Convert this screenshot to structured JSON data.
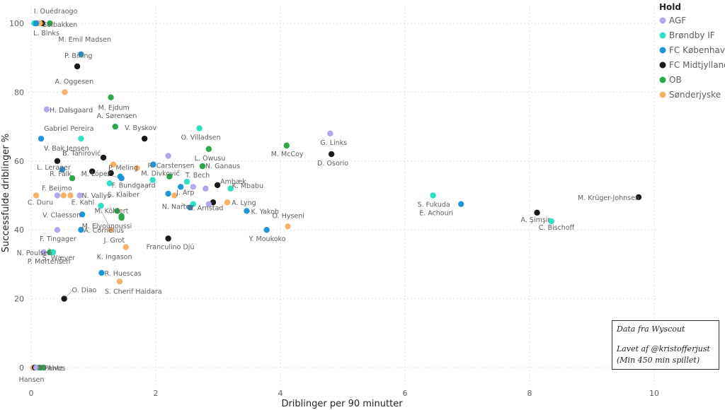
{
  "chart_data": {
    "type": "scatter",
    "title": "",
    "xlabel": "Driblinger per 90 minutter",
    "ylabel": "Successfulde driblinger %",
    "xlim": [
      0,
      10.3
    ],
    "ylim": [
      -4,
      106
    ],
    "xticks": [
      0,
      2,
      4,
      6,
      8,
      10
    ],
    "yticks": [
      0,
      20,
      40,
      60,
      80,
      100
    ],
    "grid": true,
    "legend": {
      "title": "Hold",
      "placement": "right",
      "entries": [
        {
          "team": "AGF",
          "color": "#b4a7f2"
        },
        {
          "team": "Brøndby IF",
          "color": "#2ee0c4"
        },
        {
          "team": "FC København",
          "color": "#1e96d8"
        },
        {
          "team": "FC Midtjylland",
          "color": "#1a1a1a"
        },
        {
          "team": "OB",
          "color": "#2aa84a"
        },
        {
          "team": "Sønderjyske",
          "color": "#f7b26a"
        }
      ]
    },
    "points": [
      {
        "name": "I. Ouédraogo",
        "team": "AGF",
        "x": 0.1,
        "y": 100.0
      },
      {
        "name": "Solbakken",
        "team": "OB",
        "x": 0.3,
        "y": 100.0
      },
      {
        "name": "",
        "team": "FC Midtjylland",
        "x": 0.18,
        "y": 100.0
      },
      {
        "name": "",
        "team": "Brøndby IF",
        "x": 0.05,
        "y": 100.0
      },
      {
        "name": "",
        "team": "Sønderjyske",
        "x": 0.14,
        "y": 100.0
      },
      {
        "name": "L. Binks",
        "team": "FC København",
        "x": 0.08,
        "y": 100.0
      },
      {
        "name": "M. Emil Madsen",
        "team": "FC København",
        "x": 0.8,
        "y": 91.0
      },
      {
        "name": "P. Billing",
        "team": "FC Midjtylland",
        "x": 0.74,
        "y": 87.5
      },
      {
        "name": "A. Oggesen",
        "team": "Sønderjyske",
        "x": 0.54,
        "y": 80.0
      },
      {
        "name": "M. Ejdum",
        "team": "OB",
        "x": 1.28,
        "y": 78.5
      },
      {
        "name": "H. Dalsgaard",
        "team": "AGF",
        "x": 0.25,
        "y": 75.0
      },
      {
        "name": "A. Sørensen",
        "team": "OB",
        "x": 1.35,
        "y": 70.0
      },
      {
        "name": "O. Villadsen",
        "team": "Brøndby IF",
        "x": 2.7,
        "y": 69.5
      },
      {
        "name": "G. Links",
        "team": "AGF",
        "x": 4.8,
        "y": 68.0
      },
      {
        "name": "Gabriel Pereira",
        "team": "FC København",
        "x": 0.16,
        "y": 66.5
      },
      {
        "name": "",
        "team": "Brøndby IF",
        "x": 0.8,
        "y": 66.5
      },
      {
        "name": "V. Byskov",
        "team": "FC Midtjylland",
        "x": 1.82,
        "y": 66.5
      },
      {
        "name": "M. McCoy",
        "team": "OB",
        "x": 4.1,
        "y": 64.5
      },
      {
        "name": "L. Owusu",
        "team": "OB",
        "x": 2.85,
        "y": 63.5
      },
      {
        "name": "B. Tahirović",
        "team": "FC Midtjylland",
        "x": 1.16,
        "y": 61.0
      },
      {
        "name": "V. Bak Jensen",
        "team": "FC Midtjylland",
        "x": 0.42,
        "y": 60.0
      },
      {
        "name": "",
        "team": "AGF",
        "x": 2.2,
        "y": 61.5
      },
      {
        "name": "D. Osorio",
        "team": "FC Midtjylland",
        "x": 4.82,
        "y": 62.0
      },
      {
        "name": "R. Carstensen",
        "team": "FC København",
        "x": 1.96,
        "y": 59.0
      },
      {
        "name": "N. Ganaus",
        "team": "OB",
        "x": 2.75,
        "y": 58.5
      },
      {
        "name": "L. Lerager",
        "team": "FC København",
        "x": 0.5,
        "y": 57.5
      },
      {
        "name": "P. Meling",
        "team": "Sønderjyske",
        "x": 1.32,
        "y": 59.0
      },
      {
        "name": "",
        "team": "FC Midtjylland",
        "x": 0.98,
        "y": 57.0
      },
      {
        "name": "",
        "team": "FC Midtjylland",
        "x": 1.28,
        "y": 56.5
      },
      {
        "name": "",
        "team": "Sønderjyske",
        "x": 1.7,
        "y": 58.0
      },
      {
        "name": "R. Falk",
        "team": "OB",
        "x": 0.66,
        "y": 55.0
      },
      {
        "name": "M. Divković",
        "team": "OB",
        "x": 2.22,
        "y": 55.5
      },
      {
        "name": "M. López",
        "team": "FC København",
        "x": 1.45,
        "y": 55.0
      },
      {
        "name": "",
        "team": "FC København",
        "x": 1.43,
        "y": 55.5
      },
      {
        "name": "T. Bech",
        "team": "Brøndby IF",
        "x": 2.5,
        "y": 54.0
      },
      {
        "name": "Ambæk",
        "team": "FC Midtjylland",
        "x": 2.99,
        "y": 53.0
      },
      {
        "name": "F. Bundgaard",
        "team": "Brøndby IF",
        "x": 1.95,
        "y": 54.5
      },
      {
        "name": "J. Arp",
        "team": "FC København",
        "x": 2.4,
        "y": 52.5
      },
      {
        "name": "",
        "team": "AGF",
        "x": 2.6,
        "y": 52.5
      },
      {
        "name": "",
        "team": "AGF",
        "x": 2.8,
        "y": 52.0
      },
      {
        "name": "K. Mbabu",
        "team": "Brøndby IF",
        "x": 3.2,
        "y": 52.0
      },
      {
        "name": "F. Beijmo",
        "team": "AGF",
        "x": 0.42,
        "y": 50.0
      },
      {
        "name": "S. Klaiber",
        "team": "Brøndby IF",
        "x": 1.26,
        "y": 53.5
      },
      {
        "name": "",
        "team": "FC København",
        "x": 2.2,
        "y": 50.5
      },
      {
        "name": "",
        "team": "Sønderjyske",
        "x": 2.3,
        "y": 50.0
      },
      {
        "name": "C. Duru",
        "team": "Sønderjyske",
        "x": 0.08,
        "y": 50.0
      },
      {
        "name": "",
        "team": "Sønderjyske",
        "x": 0.52,
        "y": 50.0
      },
      {
        "name": "",
        "team": "Sønderjyske",
        "x": 0.63,
        "y": 50.0
      },
      {
        "name": "E. Kahl",
        "team": "AGF",
        "x": 0.78,
        "y": 50.0
      },
      {
        "name": "S. Fukuda",
        "team": "Brøndby IF",
        "x": 6.45,
        "y": 50.0
      },
      {
        "name": "M. Krüger-Johnsen",
        "team": "FC Midtjylland",
        "x": 9.75,
        "y": 49.5
      },
      {
        "name": "A. Lyng",
        "team": "Sønderjyske",
        "x": 3.15,
        "y": 48.0
      },
      {
        "name": "N. Vallys",
        "team": "Brøndby IF",
        "x": 1.12,
        "y": 47.0
      },
      {
        "name": "N. Nartey",
        "team": "Brøndby IF",
        "x": 2.6,
        "y": 47.5
      },
      {
        "name": "",
        "team": "FC Midtjylland",
        "x": 2.92,
        "y": 48.0
      },
      {
        "name": "",
        "team": "AGF",
        "x": 2.85,
        "y": 47.5
      },
      {
        "name": "K. Arnstad",
        "team": "FC København",
        "x": 2.55,
        "y": 46.5
      },
      {
        "name": "E. Achouri",
        "team": "FC København",
        "x": 6.9,
        "y": 47.5
      },
      {
        "name": "V. Claesson",
        "team": "FC København",
        "x": 0.82,
        "y": 44.5
      },
      {
        "name": "M. Köhlert",
        "team": "OB",
        "x": 1.38,
        "y": 45.5
      },
      {
        "name": "",
        "team": "OB",
        "x": 1.45,
        "y": 44.0
      },
      {
        "name": "K. Yakob",
        "team": "FC København",
        "x": 3.46,
        "y": 45.5
      },
      {
        "name": "A. Şimşir",
        "team": "FC Midtjylland",
        "x": 8.12,
        "y": 45.0
      },
      {
        "name": "C. Bischoff",
        "team": "Brøndby IF",
        "x": 8.35,
        "y": 42.5
      },
      {
        "name": "M. Elyounoussi",
        "team": "OB",
        "x": 1.45,
        "y": 43.5
      },
      {
        "name": "J. Grot",
        "team": "Sønderjyske",
        "x": 1.28,
        "y": 40.0
      },
      {
        "name": "F. Tingager",
        "team": "AGF",
        "x": 0.42,
        "y": 40.0
      },
      {
        "name": "A. Cornelius",
        "team": "FC København",
        "x": 0.8,
        "y": 40.0
      },
      {
        "name": "Y. Moukoko",
        "team": "FC København",
        "x": 3.78,
        "y": 40.0
      },
      {
        "name": "O. Hyseni",
        "team": "Sønderjyske",
        "x": 4.12,
        "y": 41.0
      },
      {
        "name": "Franculino Djú",
        "team": "FC Midtjylland",
        "x": 2.2,
        "y": 37.5
      },
      {
        "name": "S. Wæver",
        "team": "OB",
        "x": 0.35,
        "y": 33.5
      },
      {
        "name": "N. Poulsen",
        "team": "AGF",
        "x": 0.2,
        "y": 33.5
      },
      {
        "name": "",
        "team": "OB",
        "x": 0.3,
        "y": 33.5
      },
      {
        "name": "K. Ingason",
        "team": "Sønderjyske",
        "x": 1.52,
        "y": 35.0
      },
      {
        "name": "P. Mortensen",
        "team": "Brøndby IF",
        "x": 0.35,
        "y": 33.5
      },
      {
        "name": "R. Huescas",
        "team": "FC København",
        "x": 1.13,
        "y": 27.5
      },
      {
        "name": "S. Cherif Haidara",
        "team": "Sønderjyske",
        "x": 1.42,
        "y": 25.0
      },
      {
        "name": "O. Diao",
        "team": "FC Midtjylland",
        "x": 0.53,
        "y": 20.0
      },
      {
        "name": "P. Pentz",
        "team": "Sønderjyske",
        "x": 0.03,
        "y": 0.0
      },
      {
        "name": "",
        "team": "FC Midtjylland",
        "x": 0.06,
        "y": 0.0
      },
      {
        "name": "",
        "team": "Brøndby IF",
        "x": 0.1,
        "y": 0.0
      },
      {
        "name": "",
        "team": "OB",
        "x": 0.14,
        "y": 0.0
      },
      {
        "name": "Hansen",
        "team": "OB",
        "x": 0.2,
        "y": 0.0
      },
      {
        "name": "F. Alves",
        "team": "AGF",
        "x": 0.08,
        "y": 0.0
      }
    ],
    "annotation": {
      "line1": "Data fra Wyscout",
      "line2": "Lavet af @kristofferjust",
      "line3": "(Min 450 min spillet)"
    }
  }
}
